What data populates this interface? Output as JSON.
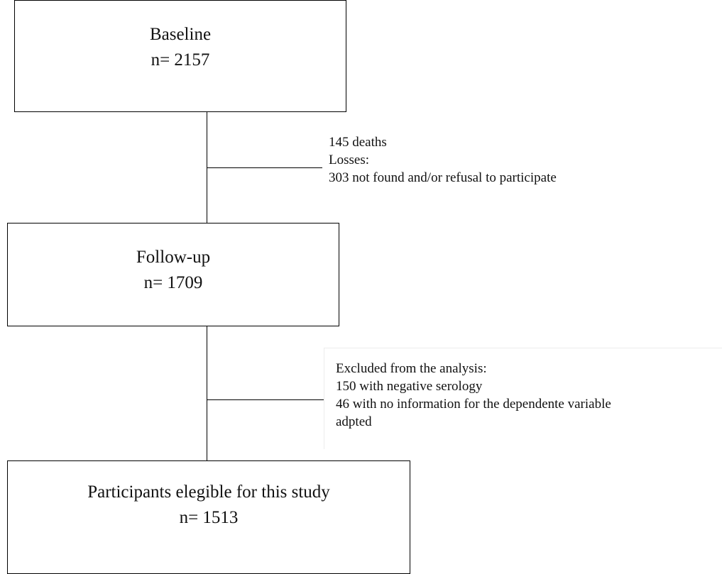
{
  "boxes": {
    "baseline": {
      "title": "Baseline",
      "count": "n= 2157"
    },
    "followup": {
      "title": "Follow-up",
      "count": "n= 1709"
    },
    "eligible": {
      "title": "Participants elegible for this study",
      "count": "n= 1513"
    }
  },
  "notes": {
    "losses": {
      "lines": [
        "145 deaths",
        "Losses:",
        "303 not found and/or refusal to participate"
      ]
    },
    "excluded": {
      "lines": [
        "Excluded from the analysis:",
        "150 with negative serology",
        "46 with no information for the dependente variable",
        "adpted"
      ]
    }
  }
}
